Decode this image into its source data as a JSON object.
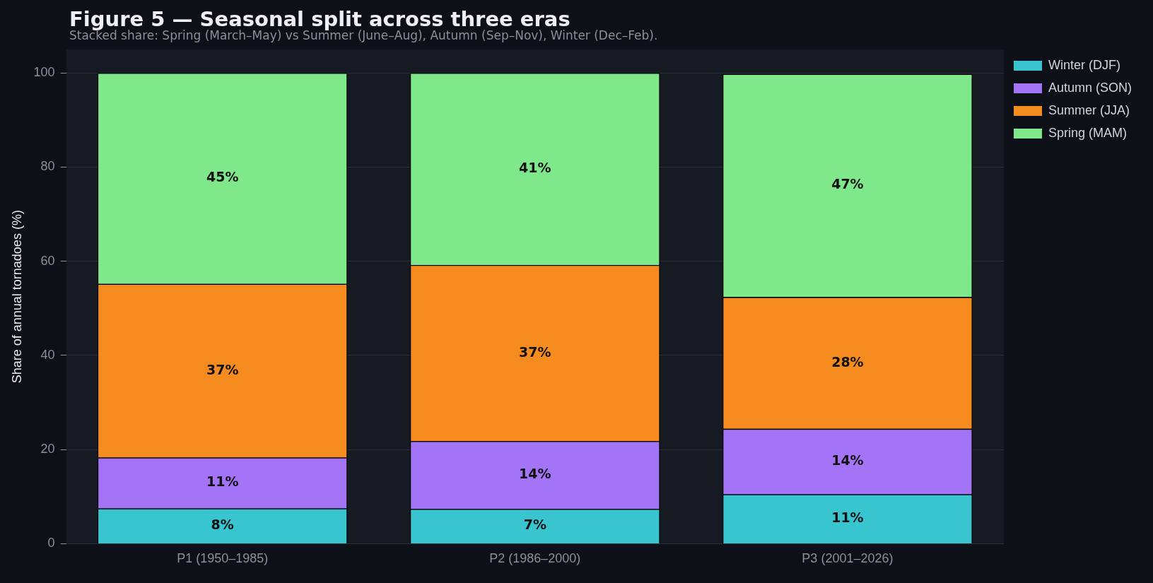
{
  "chart_data": {
    "type": "bar",
    "title": "Figure 5 — Seasonal split across three eras",
    "subtitle": "Stacked share: Spring (March–May) vs Summer (June–Aug), Autumn (Sep–Nov), Winter (Dec–Feb).",
    "ylabel": "Share of annual tornadoes (%)",
    "categories": [
      "P1 (1950–1985)",
      "P2 (1986–2000)",
      "P3 (2001–2026)"
    ],
    "stacked": true,
    "ylim": [
      0,
      105
    ],
    "yticks": [
      0,
      20,
      40,
      60,
      80,
      100
    ],
    "grid": "y",
    "legend": "top right",
    "series": [
      {
        "name": "Winter (DJF)",
        "color": "#38c5d0",
        "values": [
          7.5,
          7.4,
          10.5
        ],
        "value_labels": [
          "8%",
          "7%",
          "11%"
        ]
      },
      {
        "name": "Autumn (SON)",
        "color": "#a374f5",
        "values": [
          10.8,
          14.4,
          13.9
        ],
        "value_labels": [
          "11%",
          "14%",
          "14%"
        ]
      },
      {
        "name": "Summer (JJA)",
        "color": "#f68b1f",
        "values": [
          36.9,
          37.4,
          28.0
        ],
        "value_labels": [
          "37%",
          "37%",
          "28%"
        ]
      },
      {
        "name": "Spring (MAM)",
        "color": "#7fe88a",
        "values": [
          44.8,
          40.8,
          47.4
        ],
        "value_labels": [
          "45%",
          "41%",
          "47%"
        ]
      }
    ]
  }
}
